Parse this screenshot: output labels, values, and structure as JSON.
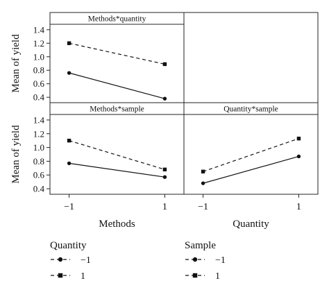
{
  "chart_data": {
    "type": "line",
    "ylabel": "Mean of yield",
    "ylim": [
      0.32,
      1.48
    ],
    "y_ticks": [
      0.4,
      0.6,
      0.8,
      1.0,
      1.2,
      1.4
    ],
    "y_tick_labels": [
      "0.4",
      "0.6",
      "0.8",
      "1.0",
      "1.2",
      "1.4"
    ],
    "x_ticks": [
      -1,
      1
    ],
    "x_tick_labels": [
      "−1",
      "1"
    ],
    "xlim": [
      -1.4,
      1.4
    ],
    "xlabels": [
      "Methods",
      "Quantity"
    ],
    "panels": [
      {
        "title": "Methods*quantity",
        "row": 0,
        "col": 0,
        "series": [
          {
            "legend": "quantity",
            "level": -1,
            "marker": "circle",
            "dashed": false,
            "x": [
              -1,
              1
            ],
            "y": [
              0.76,
              0.38
            ]
          },
          {
            "legend": "quantity",
            "level": 1,
            "marker": "square",
            "dashed": true,
            "x": [
              -1,
              1
            ],
            "y": [
              1.2,
              0.89
            ]
          }
        ]
      },
      {
        "title": "",
        "row": 0,
        "col": 1,
        "series": []
      },
      {
        "title": "Methods*sample",
        "row": 1,
        "col": 0,
        "series": [
          {
            "legend": "sample",
            "level": -1,
            "marker": "circle",
            "dashed": false,
            "x": [
              -1,
              1
            ],
            "y": [
              0.77,
              0.57
            ]
          },
          {
            "legend": "sample",
            "level": 1,
            "marker": "square",
            "dashed": true,
            "x": [
              -1,
              1
            ],
            "y": [
              1.1,
              0.68
            ]
          }
        ]
      },
      {
        "title": "Quantity*sample",
        "row": 1,
        "col": 1,
        "series": [
          {
            "legend": "sample",
            "level": -1,
            "marker": "circle",
            "dashed": false,
            "x": [
              -1,
              1
            ],
            "y": [
              0.48,
              0.87
            ]
          },
          {
            "legend": "sample",
            "level": 1,
            "marker": "square",
            "dashed": true,
            "x": [
              -1,
              1
            ],
            "y": [
              0.65,
              1.13
            ]
          }
        ]
      }
    ],
    "legends": [
      {
        "title": "Quantity",
        "entries": [
          {
            "marker": "circle",
            "dashed": true,
            "label": "−1"
          },
          {
            "marker": "square",
            "dashed": true,
            "label": "1"
          }
        ]
      },
      {
        "title": "Sample",
        "entries": [
          {
            "marker": "circle",
            "dashed": true,
            "label": "−1"
          },
          {
            "marker": "square",
            "dashed": true,
            "label": "1"
          }
        ]
      }
    ]
  }
}
